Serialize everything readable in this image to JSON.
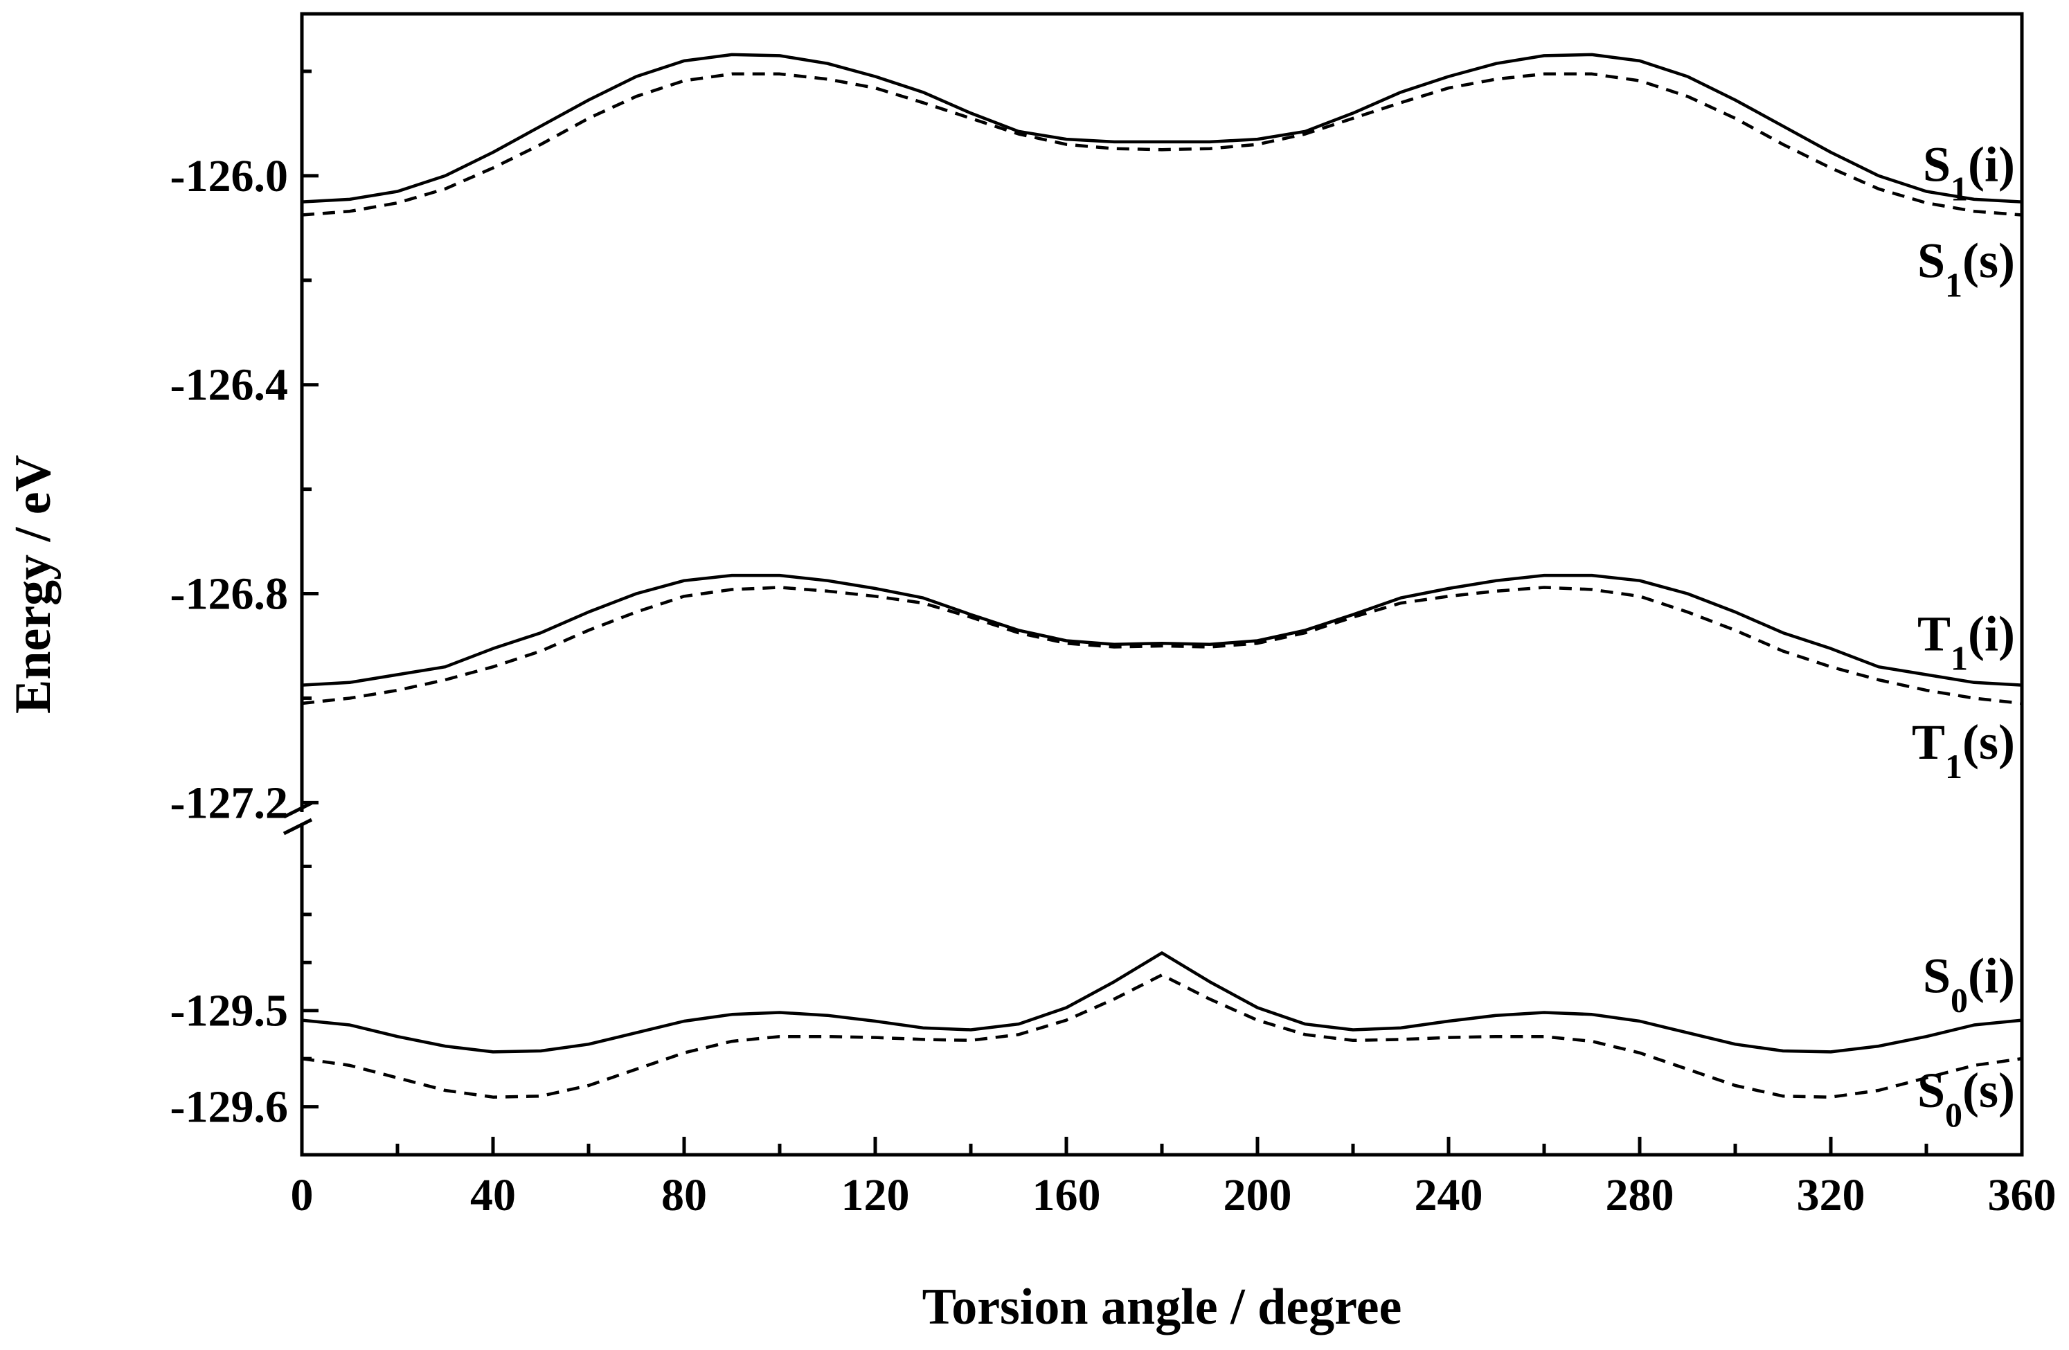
{
  "chart_data": {
    "type": "line",
    "xlabel": "Torsion angle / degree",
    "ylabel": "Energy / eV",
    "xlim": [
      0,
      360
    ],
    "x_ticks": [
      0,
      40,
      80,
      120,
      160,
      200,
      240,
      280,
      320,
      360
    ],
    "x_minor_step": 20,
    "upper_axis": {
      "ylim": [
        -127.23,
        -125.69
      ],
      "ticks": [
        -126.0,
        -126.4,
        -126.8,
        -127.2
      ],
      "tick_labels": [
        "-126.0",
        "-126.4",
        "-126.8",
        "-127.2"
      ],
      "minor_step": 0.2
    },
    "lower_axis": {
      "ylim": [
        -129.65,
        -129.3
      ],
      "ticks": [
        -129.5,
        -129.6
      ],
      "tick_labels": [
        "-129.5",
        "-129.6"
      ],
      "minor_step": 0.05
    },
    "axis_break": "y",
    "grid": false,
    "legend": "none",
    "series": [
      {
        "name_main": "S",
        "name_sub": "1",
        "name_suffix": "(i)",
        "line_style": "solid",
        "axis": "upper",
        "x": [
          0,
          10,
          20,
          30,
          40,
          50,
          60,
          70,
          80,
          90,
          100,
          110,
          120,
          130,
          140,
          150,
          160,
          170,
          180,
          190,
          200,
          210,
          220,
          230,
          240,
          250,
          260,
          270,
          280,
          290,
          300,
          310,
          320,
          330,
          340,
          350,
          360
        ],
        "values": [
          -126.05,
          -126.045,
          -126.03,
          -126.0,
          -125.955,
          -125.905,
          -125.855,
          -125.81,
          -125.78,
          -125.768,
          -125.77,
          -125.785,
          -125.81,
          -125.84,
          -125.88,
          -125.915,
          -125.93,
          -125.935,
          -125.935,
          -125.935,
          -125.93,
          -125.915,
          -125.88,
          -125.84,
          -125.81,
          -125.785,
          -125.77,
          -125.768,
          -125.78,
          -125.81,
          -125.855,
          -125.905,
          -125.955,
          -126.0,
          -126.03,
          -126.045,
          -126.05
        ]
      },
      {
        "name_main": "S",
        "name_sub": "1",
        "name_suffix": "(s)",
        "line_style": "dashed",
        "axis": "upper",
        "x": [
          0,
          10,
          20,
          30,
          40,
          50,
          60,
          70,
          80,
          90,
          100,
          110,
          120,
          130,
          140,
          150,
          160,
          170,
          180,
          190,
          200,
          210,
          220,
          230,
          240,
          250,
          260,
          270,
          280,
          290,
          300,
          310,
          320,
          330,
          340,
          350,
          360
        ],
        "values": [
          -126.075,
          -126.068,
          -126.052,
          -126.025,
          -125.985,
          -125.94,
          -125.89,
          -125.848,
          -125.818,
          -125.805,
          -125.805,
          -125.815,
          -125.832,
          -125.86,
          -125.89,
          -125.92,
          -125.94,
          -125.948,
          -125.95,
          -125.948,
          -125.94,
          -125.92,
          -125.89,
          -125.86,
          -125.832,
          -125.815,
          -125.805,
          -125.805,
          -125.818,
          -125.848,
          -125.89,
          -125.94,
          -125.985,
          -126.025,
          -126.052,
          -126.068,
          -126.075
        ]
      },
      {
        "name_main": "T",
        "name_sub": "1",
        "name_suffix": "(i)",
        "line_style": "solid",
        "axis": "upper",
        "x": [
          0,
          10,
          20,
          30,
          40,
          50,
          60,
          70,
          80,
          90,
          100,
          110,
          120,
          130,
          140,
          150,
          160,
          170,
          180,
          190,
          200,
          210,
          220,
          230,
          240,
          250,
          260,
          270,
          280,
          290,
          300,
          310,
          320,
          330,
          340,
          350,
          360
        ],
        "values": [
          -126.975,
          -126.97,
          -126.955,
          -126.94,
          -126.905,
          -126.875,
          -126.835,
          -126.8,
          -126.775,
          -126.765,
          -126.765,
          -126.775,
          -126.79,
          -126.808,
          -126.84,
          -126.87,
          -126.89,
          -126.897,
          -126.895,
          -126.897,
          -126.89,
          -126.87,
          -126.84,
          -126.808,
          -126.79,
          -126.775,
          -126.765,
          -126.765,
          -126.775,
          -126.8,
          -126.835,
          -126.875,
          -126.905,
          -126.94,
          -126.955,
          -126.97,
          -126.975
        ]
      },
      {
        "name_main": "T",
        "name_sub": "1",
        "name_suffix": "(s)",
        "line_style": "dashed",
        "axis": "upper",
        "x": [
          0,
          10,
          20,
          30,
          40,
          50,
          60,
          70,
          80,
          90,
          100,
          110,
          120,
          130,
          140,
          150,
          160,
          170,
          180,
          190,
          200,
          210,
          220,
          230,
          240,
          250,
          260,
          270,
          280,
          290,
          300,
          310,
          320,
          330,
          340,
          350,
          360
        ],
        "values": [
          -127.01,
          -127.0,
          -126.985,
          -126.965,
          -126.94,
          -126.91,
          -126.87,
          -126.835,
          -126.805,
          -126.792,
          -126.788,
          -126.795,
          -126.805,
          -126.818,
          -126.845,
          -126.875,
          -126.895,
          -126.902,
          -126.9,
          -126.902,
          -126.895,
          -126.875,
          -126.845,
          -126.818,
          -126.805,
          -126.795,
          -126.788,
          -126.792,
          -126.805,
          -126.835,
          -126.87,
          -126.91,
          -126.94,
          -126.965,
          -126.985,
          -127.0,
          -127.01
        ]
      },
      {
        "name_main": "S",
        "name_sub": "0",
        "name_suffix": "(i)",
        "line_style": "solid",
        "axis": "lower",
        "x": [
          0,
          10,
          20,
          30,
          40,
          50,
          60,
          70,
          80,
          90,
          100,
          110,
          120,
          130,
          140,
          150,
          160,
          170,
          180,
          190,
          200,
          210,
          220,
          230,
          240,
          250,
          260,
          270,
          280,
          290,
          300,
          310,
          320,
          330,
          340,
          350,
          360
        ],
        "values": [
          -129.51,
          -129.515,
          -129.527,
          -129.537,
          -129.543,
          -129.542,
          -129.535,
          -129.523,
          -129.511,
          -129.504,
          -129.502,
          -129.505,
          -129.511,
          -129.518,
          -129.52,
          -129.514,
          -129.497,
          -129.47,
          -129.44,
          -129.47,
          -129.497,
          -129.514,
          -129.52,
          -129.518,
          -129.511,
          -129.505,
          -129.502,
          -129.504,
          -129.511,
          -129.523,
          -129.535,
          -129.542,
          -129.543,
          -129.537,
          -129.527,
          -129.515,
          -129.51
        ]
      },
      {
        "name_main": "S",
        "name_sub": "0",
        "name_suffix": "(s)",
        "line_style": "dashed",
        "axis": "lower",
        "x": [
          0,
          10,
          20,
          30,
          40,
          50,
          60,
          70,
          80,
          90,
          100,
          110,
          120,
          130,
          140,
          150,
          160,
          170,
          180,
          190,
          200,
          210,
          220,
          230,
          240,
          250,
          260,
          270,
          280,
          290,
          300,
          310,
          320,
          330,
          340,
          350,
          360
        ],
        "values": [
          -129.55,
          -129.557,
          -129.57,
          -129.583,
          -129.59,
          -129.589,
          -129.578,
          -129.561,
          -129.544,
          -129.532,
          -129.527,
          -129.527,
          -129.528,
          -129.53,
          -129.531,
          -129.525,
          -129.51,
          -129.488,
          -129.463,
          -129.488,
          -129.51,
          -129.525,
          -129.531,
          -129.53,
          -129.528,
          -129.527,
          -129.527,
          -129.532,
          -129.544,
          -129.561,
          -129.578,
          -129.589,
          -129.59,
          -129.583,
          -129.57,
          -129.557,
          -129.55
        ]
      }
    ]
  }
}
